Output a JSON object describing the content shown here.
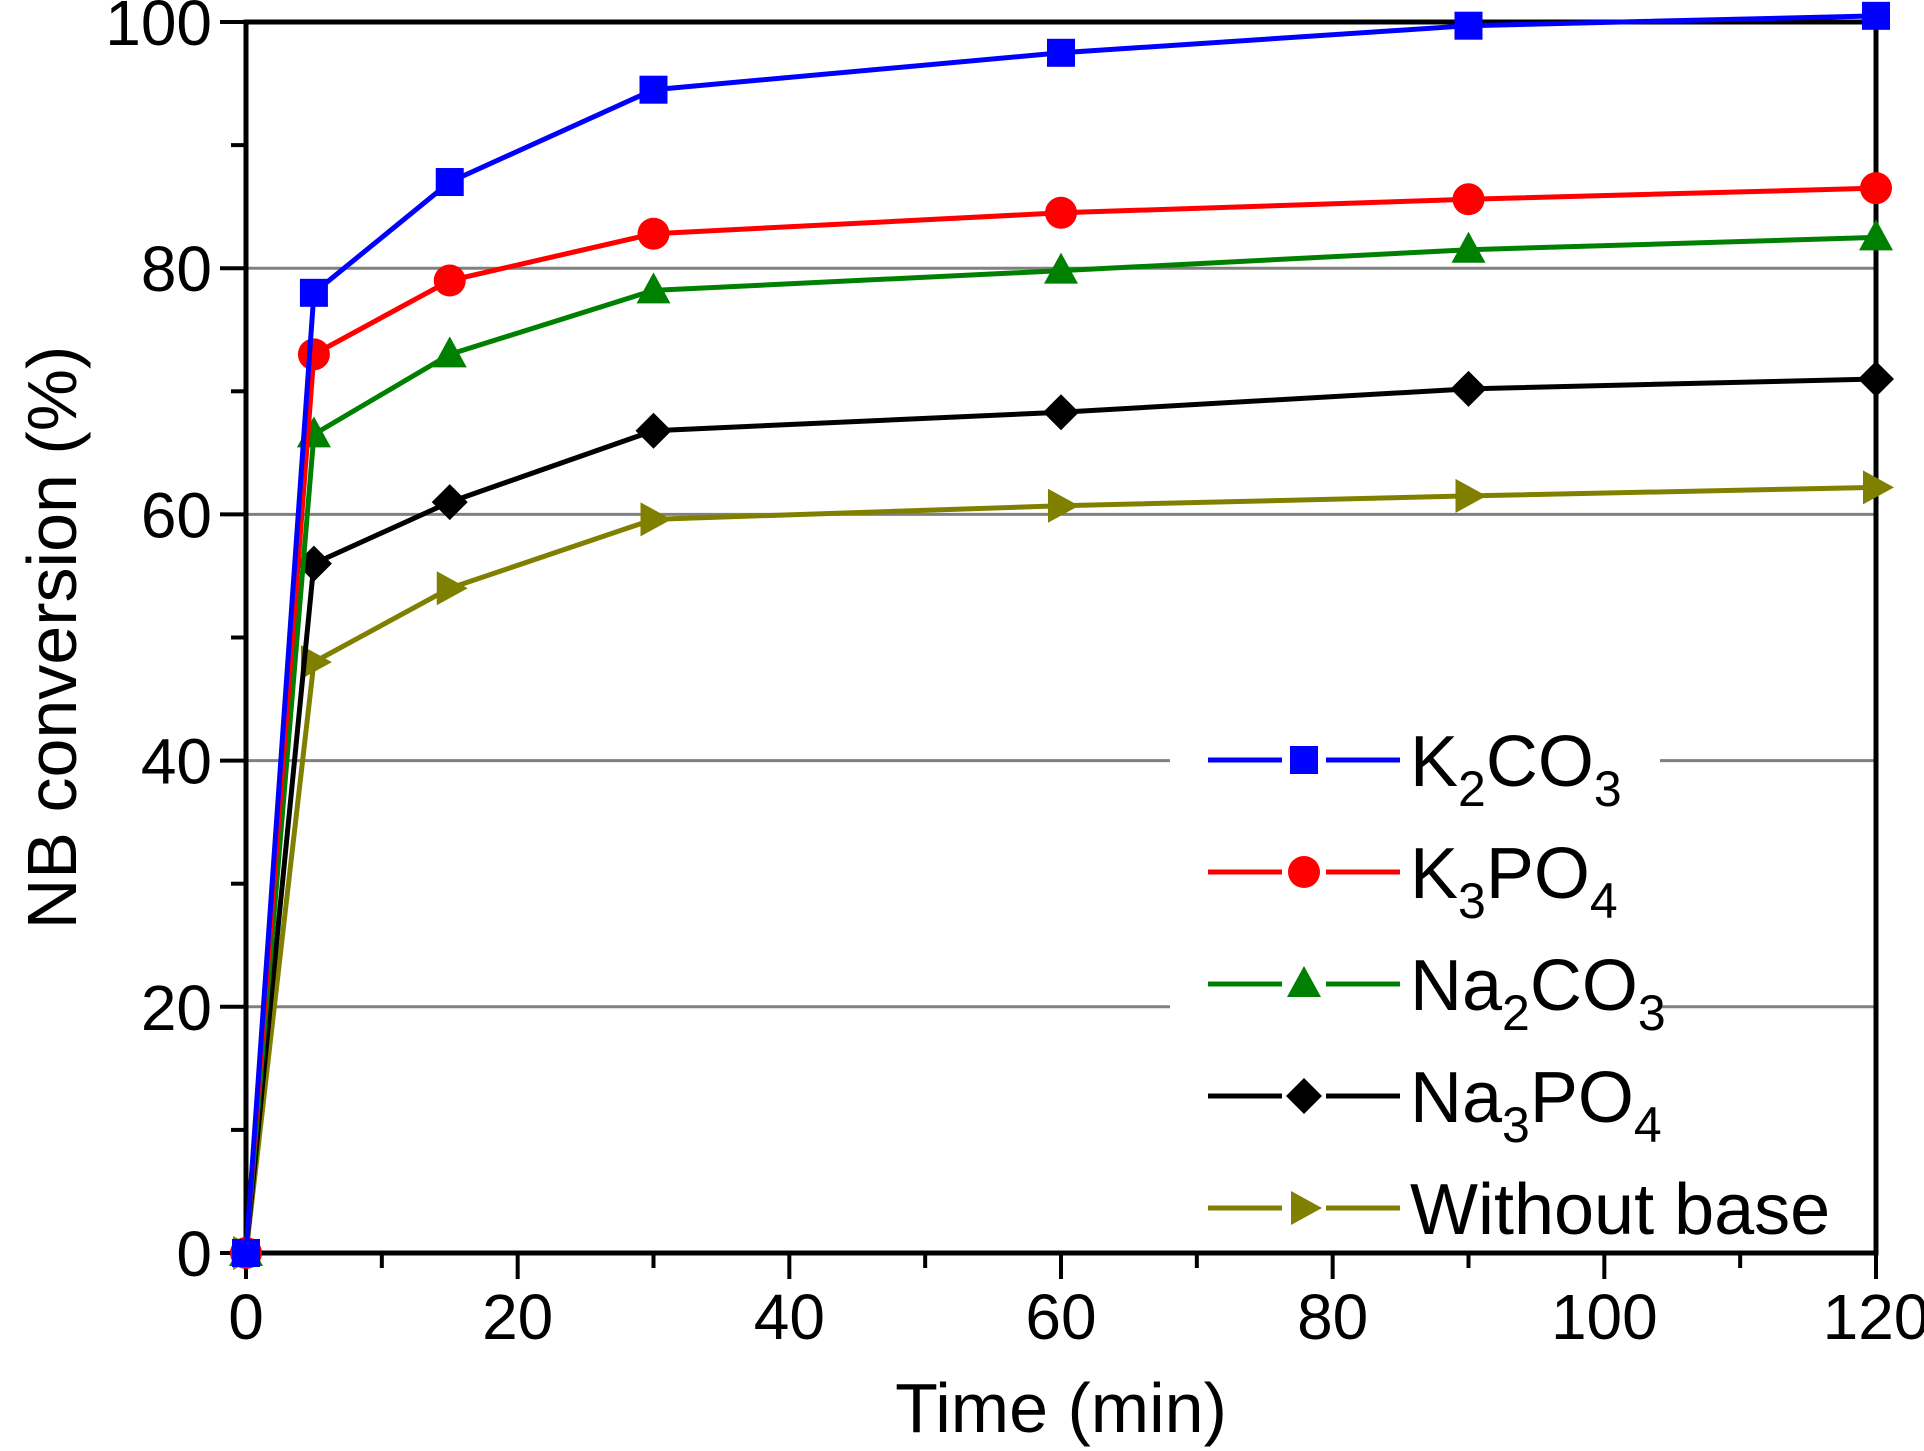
{
  "chart_data": {
    "type": "line",
    "title": "",
    "xlabel": "Time (min)",
    "ylabel": "NB conversion (%)",
    "xlim": [
      0,
      120
    ],
    "ylim": [
      0,
      100
    ],
    "xticks": [
      0,
      20,
      40,
      60,
      80,
      100,
      120
    ],
    "yticks": [
      0,
      20,
      40,
      60,
      80,
      100
    ],
    "x_minor_step": 10,
    "y_minor_step": 10,
    "grid": "horizontal major lines",
    "legend_position": "bottom-right",
    "x": [
      0,
      5,
      15,
      30,
      60,
      90,
      120
    ],
    "series": [
      {
        "name": "K2CO3",
        "label_parts": [
          {
            "t": "K",
            "sub": false
          },
          {
            "t": "2",
            "sub": true
          },
          {
            "t": "CO",
            "sub": false
          },
          {
            "t": "3",
            "sub": true
          }
        ],
        "color": "#0000FF",
        "marker": "square",
        "values": [
          0,
          78,
          87,
          94.5,
          97.5,
          99.7,
          100.5
        ]
      },
      {
        "name": "K3PO4",
        "label_parts": [
          {
            "t": "K",
            "sub": false
          },
          {
            "t": "3",
            "sub": true
          },
          {
            "t": "PO",
            "sub": false
          },
          {
            "t": "4",
            "sub": true
          }
        ],
        "color": "#FF0000",
        "marker": "circle",
        "values": [
          0,
          73,
          79,
          82.8,
          84.5,
          85.6,
          86.5
        ]
      },
      {
        "name": "Na2CO3",
        "label_parts": [
          {
            "t": "Na",
            "sub": false
          },
          {
            "t": "2",
            "sub": true
          },
          {
            "t": "CO",
            "sub": false
          },
          {
            "t": "3",
            "sub": true
          }
        ],
        "color": "#008000",
        "marker": "triangle-up",
        "values": [
          0,
          66.5,
          73,
          78.2,
          79.8,
          81.5,
          82.5
        ]
      },
      {
        "name": "Na3PO4",
        "label_parts": [
          {
            "t": "Na",
            "sub": false
          },
          {
            "t": "3",
            "sub": true
          },
          {
            "t": "PO",
            "sub": false
          },
          {
            "t": "4",
            "sub": true
          }
        ],
        "color": "#000000",
        "marker": "diamond",
        "values": [
          0,
          56,
          61,
          66.8,
          68.3,
          70.2,
          71
        ]
      },
      {
        "name": "Without base",
        "label_parts": [
          {
            "t": "Without base",
            "sub": false
          }
        ],
        "color": "#808000",
        "marker": "triangle-right",
        "values": [
          0,
          48,
          54,
          59.6,
          60.7,
          61.5,
          62.2
        ]
      }
    ]
  }
}
